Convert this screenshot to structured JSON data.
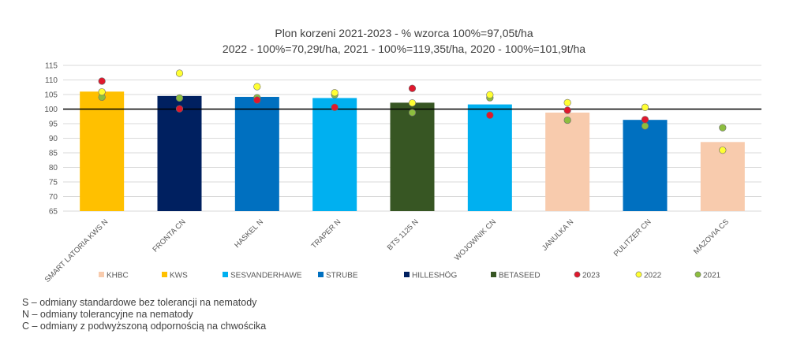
{
  "chart_data": {
    "type": "bar",
    "title": "Plon korzeni 2021-2023 - % wzorca 100%=97,05t/ha",
    "subtitle": "2022 - 100%=70,29t/ha, 2021 - 100%=119,35t/ha, 2020 - 100%=101,9t/ha",
    "categories": [
      "SMART LATORIA KWS N",
      "FRONTA CN",
      "HASKEL N",
      "TRAPER N",
      "BTS 1125 N",
      "WOJOWNIK CN",
      "JANULKA N",
      "PULITZER CN",
      "MAZOVIA CS"
    ],
    "values": [
      106,
      104.5,
      104.2,
      103.8,
      102.2,
      101.6,
      98.8,
      96.3,
      88.7
    ],
    "bar_groups": [
      "KWS",
      "HILLESHÖG",
      "STRUBE",
      "SESVANDERHAWE",
      "BETASEED",
      "SESVANDERHAWE",
      "KHBC",
      "STRUBE",
      "KHBC"
    ],
    "series": [
      {
        "name": "2023",
        "color": "#E0182D",
        "values": [
          109.6,
          100.1,
          103.1,
          100.6,
          107.1,
          97.9,
          99.6,
          96.4,
          null
        ]
      },
      {
        "name": "2022",
        "color": "#FFFF33",
        "values": [
          105.9,
          112.3,
          107.7,
          105.6,
          102.1,
          104.9,
          102.2,
          100.6,
          85.9
        ]
      },
      {
        "name": "2021",
        "color": "#8DBE3F",
        "values": [
          104.1,
          103.8,
          103.9,
          104.9,
          98.8,
          103.9,
          96.2,
          94.2,
          93.6
        ]
      }
    ],
    "legend": [
      {
        "label": "KHBC",
        "kind": "square",
        "color": "#F8CBAD"
      },
      {
        "label": "KWS",
        "kind": "square",
        "color": "#FFC000"
      },
      {
        "label": "SESVANDERHAWE",
        "kind": "square",
        "color": "#00B0F0"
      },
      {
        "label": "STRUBE",
        "kind": "square",
        "color": "#0070C0"
      },
      {
        "label": "HILLESHÖG",
        "kind": "square",
        "color": "#002060"
      },
      {
        "label": "BETASEED",
        "kind": "square",
        "color": "#375623"
      },
      {
        "label": "2023",
        "kind": "dot",
        "color": "#E0182D"
      },
      {
        "label": "2022",
        "kind": "dot",
        "color": "#FFFF33"
      },
      {
        "label": "2021",
        "kind": "dot",
        "color": "#8DBE3F"
      }
    ],
    "group_colors": {
      "KHBC": "#F8CBAD",
      "KWS": "#FFC000",
      "SESVANDERHAWE": "#00B0F0",
      "STRUBE": "#0070C0",
      "HILLESHÖG": "#002060",
      "BETASEED": "#375623"
    },
    "reference_line": 100,
    "ylim": [
      65,
      115
    ],
    "yticks": [
      65,
      70,
      75,
      80,
      85,
      90,
      95,
      100,
      105,
      110,
      115
    ],
    "grid": true,
    "legend_position": "bottom"
  },
  "notes": [
    "S – odmiany standardowe bez tolerancji na nematody",
    "N – odmiany tolerancyjne na nematody",
    "C – odmiany z podwyższoną odpornością na chwościka"
  ]
}
